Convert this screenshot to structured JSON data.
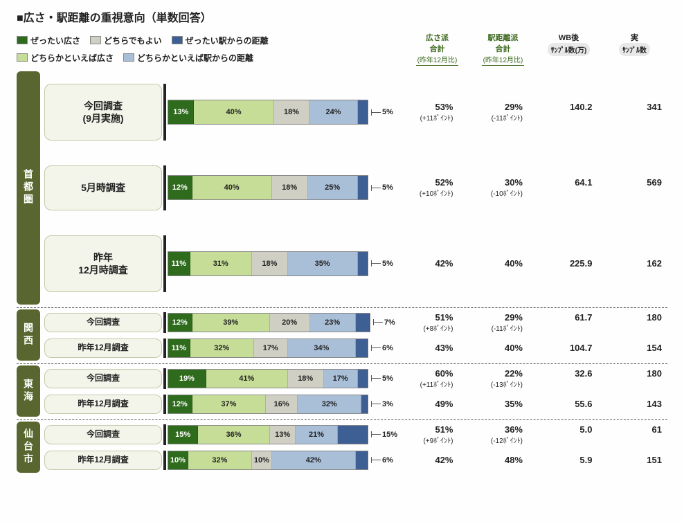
{
  "title": "■広さ・駅距離の重視意向（単数回答）",
  "colors": {
    "c1": "#2f6b1d",
    "c2": "#c5dd97",
    "c3": "#cfcfc4",
    "c4": "#a9bfd8",
    "c5": "#3e5f94",
    "region": "#5a662f",
    "rowbg": "#f3f5ea"
  },
  "legend": [
    {
      "label": "ぜったい広さ",
      "color": "#2f6b1d"
    },
    {
      "label": "どちらでもよい",
      "color": "#cfcfc4"
    },
    {
      "label": "ぜったい駅からの距離",
      "color": "#3e5f94"
    },
    {
      "label": "どちらかといえば広さ",
      "color": "#c5dd97"
    },
    {
      "label": "どちらかといえば駅からの距離",
      "color": "#a9bfd8"
    }
  ],
  "top_columns": {
    "wide": {
      "l1": "広さ派",
      "l2": "合計",
      "l3": "(昨年12月比)"
    },
    "dist": {
      "l1": "駅距離派",
      "l2": "合計",
      "l3": "(昨年12月比)"
    },
    "wb": {
      "l1": "WB後",
      "l2": "ｻﾝﾌﾟﾙ数(万)"
    },
    "act": {
      "l1": "実",
      "l2": "ｻﾝﾌﾟﾙ数"
    }
  },
  "bar_total_width": 290,
  "regions": [
    {
      "name": "首都圏",
      "big": true,
      "dashed_after": true,
      "rows": [
        {
          "label": "今回調査\n(9月実施)",
          "seg": [
            13,
            40,
            18,
            24,
            5
          ],
          "wide": "53%",
          "wide_sub": "(+11ﾎﾟｲﾝﾄ)",
          "dist": "29%",
          "dist_sub": "(-11ﾎﾟｲﾝﾄ)",
          "wb": "140.2",
          "act": "341"
        },
        {
          "label": "5月時調査",
          "seg": [
            12,
            40,
            18,
            25,
            5
          ],
          "wide": "52%",
          "wide_sub": "(+10ﾎﾟｲﾝﾄ)",
          "dist": "30%",
          "dist_sub": "(-10ﾎﾟｲﾝﾄ)",
          "wb": "64.1",
          "act": "569"
        },
        {
          "label": "昨年\n12月時調査",
          "seg": [
            11,
            31,
            18,
            35,
            5
          ],
          "wide": "42%",
          "wide_sub": "",
          "dist": "40%",
          "dist_sub": "",
          "wb": "225.9",
          "act": "162"
        }
      ]
    },
    {
      "name": "関西",
      "big": false,
      "dashed_after": true,
      "rows": [
        {
          "label": "今回調査",
          "seg": [
            12,
            39,
            20,
            23,
            7
          ],
          "wide": "51%",
          "wide_sub": "(+8ﾎﾟｲﾝﾄ)",
          "dist": "29%",
          "dist_sub": "(-11ﾎﾟｲﾝﾄ)",
          "wb": "61.7",
          "act": "180"
        },
        {
          "label": "昨年12月調査",
          "seg": [
            11,
            32,
            17,
            34,
            6
          ],
          "wide": "43%",
          "wide_sub": "",
          "dist": "40%",
          "dist_sub": "",
          "wb": "104.7",
          "act": "154"
        }
      ]
    },
    {
      "name": "東海",
      "big": false,
      "dashed_after": true,
      "rows": [
        {
          "label": "今回調査",
          "seg": [
            19,
            41,
            18,
            17,
            5
          ],
          "wide": "60%",
          "wide_sub": "(+11ﾎﾟｲﾝﾄ)",
          "dist": "22%",
          "dist_sub": "(-13ﾎﾟｲﾝﾄ)",
          "wb": "32.6",
          "act": "180"
        },
        {
          "label": "昨年12月調査",
          "seg": [
            12,
            37,
            16,
            32,
            3
          ],
          "wide": "49%",
          "wide_sub": "",
          "dist": "35%",
          "dist_sub": "",
          "wb": "55.6",
          "act": "143"
        }
      ]
    },
    {
      "name": "仙台市",
      "big": false,
      "dashed_after": false,
      "rows": [
        {
          "label": "今回調査",
          "seg": [
            15,
            36,
            13,
            21,
            15
          ],
          "wide": "51%",
          "wide_sub": "(+9ﾎﾟｲﾝﾄ)",
          "dist": "36%",
          "dist_sub": "(-12ﾎﾟｲﾝﾄ)",
          "wb": "5.0",
          "act": "61"
        },
        {
          "label": "昨年12月調査",
          "seg": [
            10,
            32,
            10,
            42,
            6
          ],
          "wide": "42%",
          "wide_sub": "",
          "dist": "48%",
          "dist_sub": "",
          "wb": "5.9",
          "act": "151"
        }
      ]
    }
  ]
}
